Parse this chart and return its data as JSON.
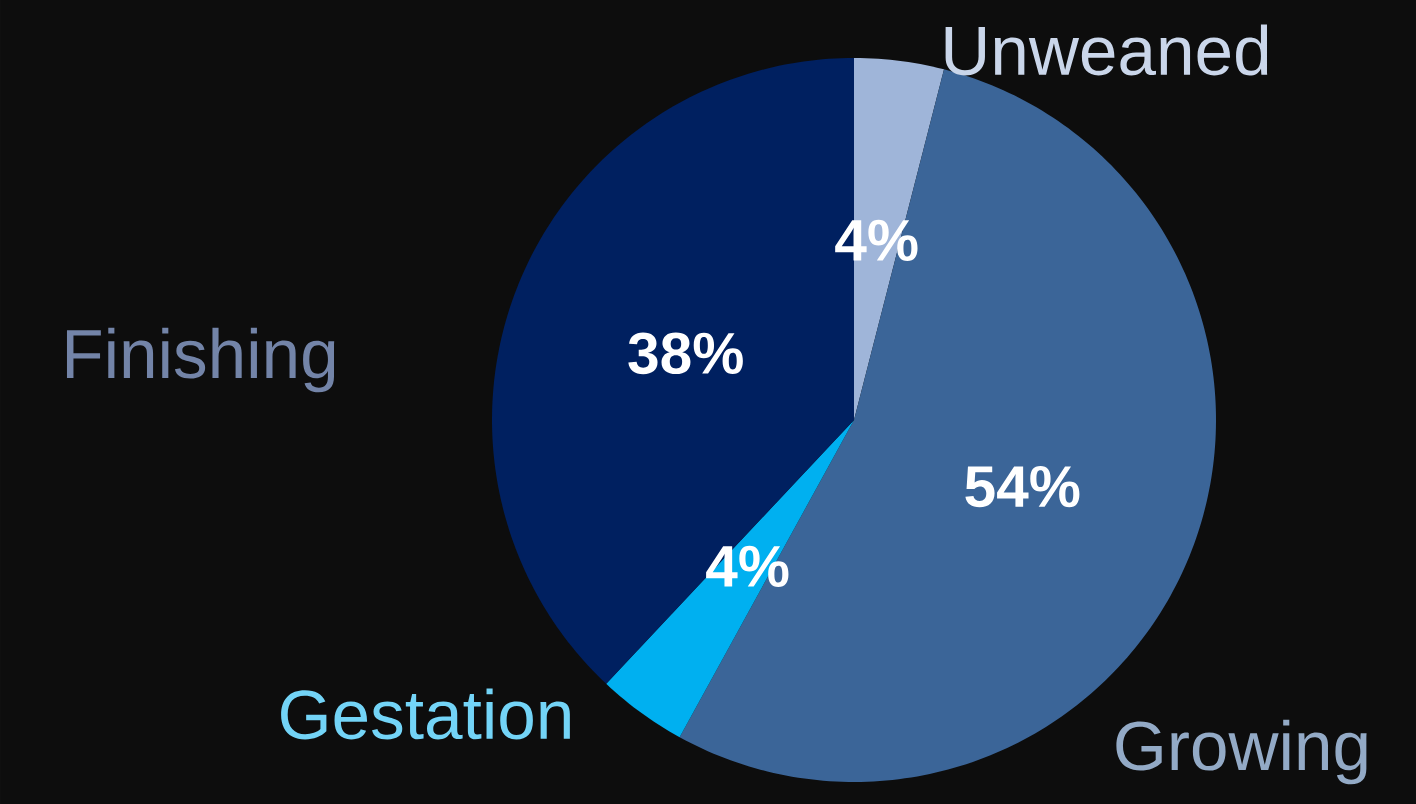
{
  "chart_data": {
    "type": "pie",
    "categories": [
      "Unweaned",
      "Growing",
      "Gestation",
      "Finishing"
    ],
    "values": [
      4,
      54,
      4,
      38
    ],
    "colors": [
      "#9fb5d9",
      "#3b6598",
      "#00b0f0",
      "#002060"
    ],
    "value_labels": [
      "4%",
      "54%",
      "4%",
      "38%"
    ]
  }
}
